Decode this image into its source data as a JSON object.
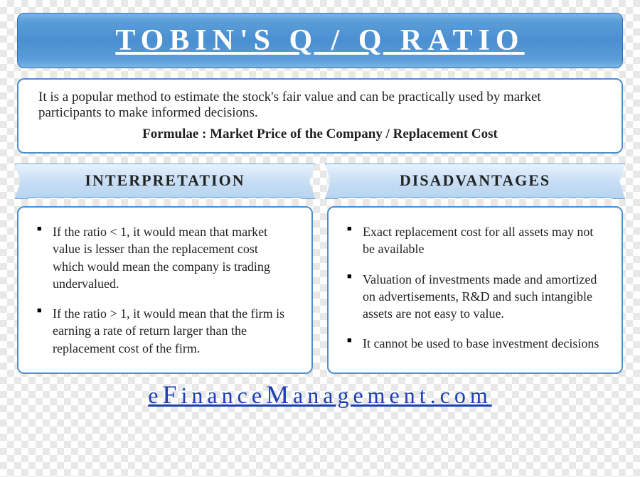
{
  "title": "TOBIN'S Q / Q RATIO",
  "description": {
    "text": "It is a popular method to estimate the stock's fair value and can be practically used by market participants to make informed decisions.",
    "formula": "Formulae : Market Price of the Company / Replacement Cost"
  },
  "columns": {
    "left": {
      "header": "INTERPRETATION",
      "items": [
        "If the ratio < 1, it would mean that market value is lesser than the replacement cost which would mean the company is trading undervalued.",
        "If the ratio > 1, it would mean that the firm is earning a rate of return larger than the replacement cost of the firm."
      ]
    },
    "right": {
      "header": "DISADVANTAGES",
      "items": [
        "Exact replacement cost for all assets may not be available",
        "Valuation of investments made and amortized on advertisements, R&D and such intangible assets are not easy to value.",
        "It cannot be used to base investment decisions"
      ]
    }
  },
  "footer": {
    "parts": [
      "e",
      "F",
      "inance",
      "M",
      "anagement.com"
    ]
  },
  "styling": {
    "title_bg_gradient": [
      "#7ab5e8",
      "#5a9dd8",
      "#4a8fd0"
    ],
    "title_text_color": "#ffffff",
    "title_fontsize": 42,
    "box_border_color": "#4a8fd0",
    "box_bg_color": "#ffffff",
    "ribbon_gradient": [
      "#e8f2fc",
      "#c8dff5",
      "#b8d4ef"
    ],
    "ribbon_border": "#6aa8db",
    "body_fontsize": 18,
    "header_fontsize": 22,
    "footer_color": "#1a3fb5",
    "footer_fontsize": 32,
    "bullet_marker": "■",
    "font_family": "Garamond, Georgia, serif"
  }
}
